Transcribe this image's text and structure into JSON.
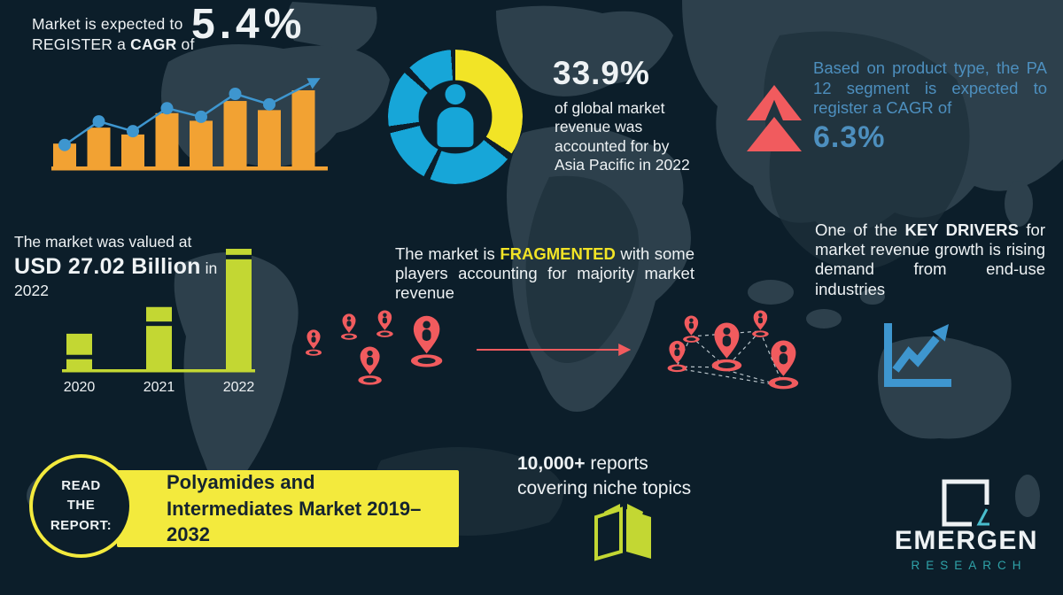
{
  "colors": {
    "background": "#0c1e2a",
    "map": "#2d404c",
    "map_dark": "#1d303b",
    "orange": "#f2a233",
    "blue": "#3e96cf",
    "donut_cyan": "#17a6d8",
    "donut_yellow": "#f2e426",
    "red": "#f15b5e",
    "green": "#c3d733",
    "steel_blue_text": "#4d8fbe",
    "banner_yellow": "#f3ea3d",
    "dark_text": "#15242f",
    "teal": "#2fa3a9",
    "teal_accent": "#49bdcd",
    "white": "#eef2f4",
    "pin_dark": "#13242e"
  },
  "cagr_block": {
    "line1": "Market is expected to",
    "line2_pre": "REGISTER a ",
    "line2_bold": "CAGR",
    "line2_post": " of",
    "value": "5.4%"
  },
  "asia_block": {
    "value": "33.9%",
    "description": "of global market revenue was accounted for by Asia Pacific in 2022"
  },
  "pa12_block": {
    "text": "Based on product type, the PA 12 segment is expected to register a CAGR of",
    "value": "6.3%"
  },
  "valuation_block": {
    "line1": "The market was valued at",
    "bold": "USD 27.02 Billion",
    "suffix": " in",
    "line3": "2022"
  },
  "fragmented_block": {
    "pre": "The market is ",
    "highlight": "FRAGMENTED",
    "post": " with some players accounting for majority market revenue"
  },
  "key_drivers_block": {
    "pre": "One of the ",
    "bold": "KEY DRIVERS",
    "post": " for market revenue growth is rising demand from end-use industries"
  },
  "report_block": {
    "badge_lines": [
      "READ",
      "THE",
      "REPORT:"
    ],
    "title": "Polyamides and Intermediates Market 2019–2032"
  },
  "reports_block": {
    "bold": "10,000+",
    "line1_rest": " reports",
    "line2": "covering niche topics"
  },
  "logo": {
    "name": "EMERGEN",
    "subtitle": "RESEARCH"
  },
  "icons": {
    "map-pin-icon": "red location pin with person glyph on ellipse base",
    "double-up-arrow-icon": "red stacked chevron and triangle pointing up",
    "person-icon": "cyan human figure in donut center",
    "growth-chart-icon": "blue axes with rising zigzag arrow",
    "open-book-icon": "green open book",
    "logo-square-icon": "white open square with teal fold accent",
    "trend-arrow-icon": "blue polyline ending in arrowhead"
  },
  "chart_data": [
    {
      "id": "growth_trend",
      "type": "bar",
      "title": "Market growth trend (unlabeled decorative chart, CAGR 5.4%)",
      "categories": [
        "",
        "",
        "",
        "",
        "",
        "",
        "",
        ""
      ],
      "values": [
        30,
        51,
        42,
        70,
        60,
        86,
        74,
        100
      ],
      "line_overlay": [
        22,
        58,
        43,
        78,
        65,
        100,
        84
      ],
      "xlabel": "",
      "ylabel": "",
      "ylim": [
        0,
        100
      ],
      "grid": false,
      "legend": false
    },
    {
      "id": "asia_share",
      "type": "pie",
      "title": "Share of global market revenue accounted for by Asia Pacific, 2022",
      "labels": [
        "Asia Pacific",
        "Rest of world"
      ],
      "values": [
        33.9,
        66.1
      ],
      "display_segments": [
        {
          "color": "donut_yellow",
          "from": 0,
          "to": 123
        },
        {
          "color": "donut_cyan",
          "from": 129,
          "to": 202
        },
        {
          "color": "donut_cyan",
          "from": 208,
          "to": 256
        },
        {
          "color": "donut_cyan",
          "from": 262,
          "to": 311
        },
        {
          "color": "donut_cyan",
          "from": 317,
          "to": 356
        }
      ]
    },
    {
      "id": "valuation_by_year",
      "type": "bar",
      "title": "Market value by year (relative heights; 2022 = USD 27.02 Billion)",
      "categories": [
        "2020",
        "2021",
        "2022"
      ],
      "values": [
        30,
        52,
        100
      ],
      "cap_offsets": [
        0.58,
        0.23,
        0.05
      ],
      "xlabel": "",
      "ylabel": "",
      "ylim": [
        0,
        100
      ],
      "grid": false,
      "legend": false
    }
  ]
}
